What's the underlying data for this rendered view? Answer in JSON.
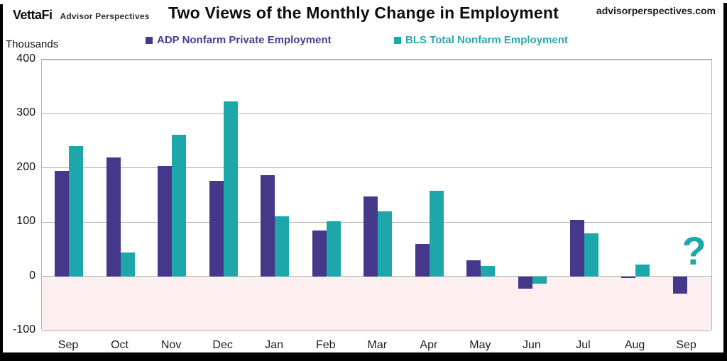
{
  "header": {
    "logo_primary": "VettaFi",
    "logo_secondary": "Advisor Perspectives",
    "title": "Two Views of the Monthly Change in Employment",
    "website": "advisorperspectives.com"
  },
  "chart_data": {
    "type": "bar",
    "title": "Two Views of the Monthly Change in Employment",
    "unit_label": "Thousands",
    "categories": [
      "Sep",
      "Oct",
      "Nov",
      "Dec",
      "Jan",
      "Feb",
      "Mar",
      "Apr",
      "May",
      "Jun",
      "Jul",
      "Aug",
      "Sep"
    ],
    "series": [
      {
        "name": "ADP Nonfarm Private Employment",
        "color": "#453789",
        "text_color": "#4a3c96",
        "values": [
          195,
          220,
          204,
          176,
          186,
          84,
          147,
          60,
          29,
          -23,
          104,
          -3,
          -32
        ]
      },
      {
        "name": "BLS Total Nonfarm Employment",
        "color": "#1ea7ab",
        "text_color": "#2aa8ad",
        "values": [
          240,
          44,
          261,
          323,
          111,
          102,
          120,
          158,
          19,
          -13,
          79,
          22,
          null
        ]
      }
    ],
    "ylim": [
      -100,
      400
    ],
    "yticks": [
      400,
      300,
      200,
      100,
      0,
      -100
    ],
    "grid": "horizontal",
    "legend_position": "top",
    "negative_region_color": "#fdeeef",
    "gridline_color": "#b2b2b2",
    "missing_value_marker": "?",
    "missing_value_marker_color": "#1ea7ab"
  }
}
